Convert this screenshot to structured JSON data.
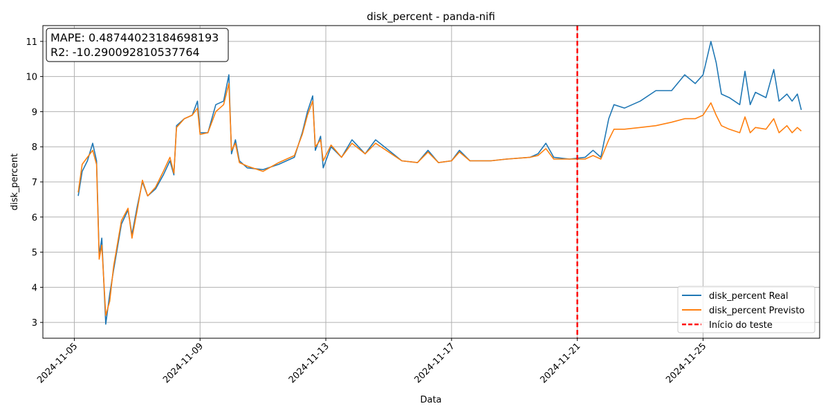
{
  "chart_data": {
    "type": "line",
    "title": "disk_percent - panda-nifi",
    "xlabel": "Data",
    "ylabel": "disk_percent",
    "xlim": [
      "2024-11-04T00:00",
      "2024-11-28T17:00"
    ],
    "ylim": [
      2.55,
      11.45
    ],
    "grid": true,
    "legend_position": "lower right",
    "x_ticks": [
      "2024-11-05",
      "2024-11-09",
      "2024-11-13",
      "2024-11-17",
      "2024-11-21",
      "2024-11-25"
    ],
    "y_ticks": [
      "3",
      "4",
      "5",
      "6",
      "7",
      "8",
      "9",
      "10",
      "11"
    ],
    "annotation": {
      "lines": [
        "MAPE: 0.48744023184698193",
        "R2: -10.290092810537764"
      ]
    },
    "vline": {
      "x": "2024-11-21",
      "label": "Início do teste",
      "color": "#ff0000",
      "style": "dashed"
    },
    "series": [
      {
        "name": "disk_percent Real",
        "color": "#1f77b4",
        "points": [
          [
            "2024-11-05T03:00",
            6.6
          ],
          [
            "2024-11-05T06:00",
            7.3
          ],
          [
            "2024-11-05T10:00",
            7.6
          ],
          [
            "2024-11-05T14:00",
            8.1
          ],
          [
            "2024-11-05T17:00",
            7.6
          ],
          [
            "2024-11-05T19:00",
            4.9
          ],
          [
            "2024-11-05T21:00",
            5.4
          ],
          [
            "2024-11-06T00:00",
            2.95
          ],
          [
            "2024-11-06T03:00",
            3.8
          ],
          [
            "2024-11-06T06:00",
            4.5
          ],
          [
            "2024-11-06T12:00",
            5.8
          ],
          [
            "2024-11-06T17:00",
            6.2
          ],
          [
            "2024-11-06T20:00",
            5.5
          ],
          [
            "2024-11-07T00:00",
            6.3
          ],
          [
            "2024-11-07T04:00",
            7.0
          ],
          [
            "2024-11-07T08:00",
            6.6
          ],
          [
            "2024-11-07T14:00",
            6.8
          ],
          [
            "2024-11-07T20:00",
            7.2
          ],
          [
            "2024-11-08T01:00",
            7.6
          ],
          [
            "2024-11-08T04:00",
            7.2
          ],
          [
            "2024-11-08T06:00",
            8.6
          ],
          [
            "2024-11-08T12:00",
            8.8
          ],
          [
            "2024-11-08T18:00",
            8.9
          ],
          [
            "2024-11-08T22:00",
            9.3
          ],
          [
            "2024-11-09T00:00",
            8.4
          ],
          [
            "2024-11-09T06:00",
            8.4
          ],
          [
            "2024-11-09T12:00",
            9.2
          ],
          [
            "2024-11-09T18:00",
            9.3
          ],
          [
            "2024-11-09T22:00",
            10.05
          ],
          [
            "2024-11-10T00:00",
            7.8
          ],
          [
            "2024-11-10T03:00",
            8.2
          ],
          [
            "2024-11-10T06:00",
            7.6
          ],
          [
            "2024-11-10T12:00",
            7.4
          ],
          [
            "2024-11-11T00:00",
            7.35
          ],
          [
            "2024-11-11T12:00",
            7.5
          ],
          [
            "2024-11-12T00:00",
            7.7
          ],
          [
            "2024-11-12T06:00",
            8.4
          ],
          [
            "2024-11-12T10:00",
            9.0
          ],
          [
            "2024-11-12T14:00",
            9.45
          ],
          [
            "2024-11-12T16:00",
            7.9
          ],
          [
            "2024-11-12T20:00",
            8.3
          ],
          [
            "2024-11-12T22:00",
            7.4
          ],
          [
            "2024-11-13T04:00",
            8.0
          ],
          [
            "2024-11-13T12:00",
            7.7
          ],
          [
            "2024-11-13T20:00",
            8.2
          ],
          [
            "2024-11-14T06:00",
            7.8
          ],
          [
            "2024-11-14T14:00",
            8.2
          ],
          [
            "2024-11-15T00:00",
            7.9
          ],
          [
            "2024-11-15T10:00",
            7.6
          ],
          [
            "2024-11-15T22:00",
            7.55
          ],
          [
            "2024-11-16T06:00",
            7.9
          ],
          [
            "2024-11-16T14:00",
            7.55
          ],
          [
            "2024-11-17T00:00",
            7.6
          ],
          [
            "2024-11-17T06:00",
            7.9
          ],
          [
            "2024-11-17T14:00",
            7.6
          ],
          [
            "2024-11-18T06:00",
            7.6
          ],
          [
            "2024-11-18T18:00",
            7.65
          ],
          [
            "2024-11-19T12:00",
            7.7
          ],
          [
            "2024-11-19T18:00",
            7.8
          ],
          [
            "2024-11-20T00:00",
            8.1
          ],
          [
            "2024-11-20T06:00",
            7.7
          ],
          [
            "2024-11-20T18:00",
            7.65
          ],
          [
            "2024-11-21T06:00",
            7.7
          ],
          [
            "2024-11-21T12:00",
            7.9
          ],
          [
            "2024-11-21T18:00",
            7.7
          ],
          [
            "2024-11-22T00:00",
            8.8
          ],
          [
            "2024-11-22T04:00",
            9.2
          ],
          [
            "2024-11-22T12:00",
            9.1
          ],
          [
            "2024-11-23T00:00",
            9.3
          ],
          [
            "2024-11-23T12:00",
            9.6
          ],
          [
            "2024-11-24T00:00",
            9.6
          ],
          [
            "2024-11-24T10:00",
            10.05
          ],
          [
            "2024-11-24T18:00",
            9.8
          ],
          [
            "2024-11-25T00:00",
            10.05
          ],
          [
            "2024-11-25T06:00",
            11.0
          ],
          [
            "2024-11-25T10:00",
            10.4
          ],
          [
            "2024-11-25T14:00",
            9.5
          ],
          [
            "2024-11-25T20:00",
            9.4
          ],
          [
            "2024-11-26T04:00",
            9.2
          ],
          [
            "2024-11-26T08:00",
            10.15
          ],
          [
            "2024-11-26T12:00",
            9.2
          ],
          [
            "2024-11-26T16:00",
            9.55
          ],
          [
            "2024-11-27T00:00",
            9.4
          ],
          [
            "2024-11-27T06:00",
            10.2
          ],
          [
            "2024-11-27T10:00",
            9.3
          ],
          [
            "2024-11-27T16:00",
            9.5
          ],
          [
            "2024-11-27T20:00",
            9.3
          ],
          [
            "2024-11-28T00:00",
            9.5
          ],
          [
            "2024-11-28T03:00",
            9.05
          ]
        ]
      },
      {
        "name": "disk_percent Previsto",
        "color": "#ff7f0e",
        "points": [
          [
            "2024-11-05T03:00",
            6.7
          ],
          [
            "2024-11-05T06:00",
            7.5
          ],
          [
            "2024-11-05T10:00",
            7.7
          ],
          [
            "2024-11-05T14:00",
            7.9
          ],
          [
            "2024-11-05T17:00",
            7.5
          ],
          [
            "2024-11-05T19:00",
            4.8
          ],
          [
            "2024-11-05T21:00",
            5.2
          ],
          [
            "2024-11-06T00:00",
            3.2
          ],
          [
            "2024-11-06T03:00",
            3.6
          ],
          [
            "2024-11-06T06:00",
            4.6
          ],
          [
            "2024-11-06T12:00",
            5.9
          ],
          [
            "2024-11-06T17:00",
            6.25
          ],
          [
            "2024-11-06T20:00",
            5.4
          ],
          [
            "2024-11-07T00:00",
            6.2
          ],
          [
            "2024-11-07T04:00",
            7.05
          ],
          [
            "2024-11-07T08:00",
            6.6
          ],
          [
            "2024-11-07T14:00",
            6.85
          ],
          [
            "2024-11-07T20:00",
            7.3
          ],
          [
            "2024-11-08T01:00",
            7.7
          ],
          [
            "2024-11-08T04:00",
            7.25
          ],
          [
            "2024-11-08T06:00",
            8.55
          ],
          [
            "2024-11-08T12:00",
            8.8
          ],
          [
            "2024-11-08T18:00",
            8.9
          ],
          [
            "2024-11-08T22:00",
            9.1
          ],
          [
            "2024-11-09T00:00",
            8.35
          ],
          [
            "2024-11-09T06:00",
            8.4
          ],
          [
            "2024-11-09T12:00",
            9.0
          ],
          [
            "2024-11-09T18:00",
            9.2
          ],
          [
            "2024-11-09T22:00",
            9.8
          ],
          [
            "2024-11-10T00:00",
            7.9
          ],
          [
            "2024-11-10T03:00",
            8.1
          ],
          [
            "2024-11-10T06:00",
            7.55
          ],
          [
            "2024-11-10T12:00",
            7.45
          ],
          [
            "2024-11-11T00:00",
            7.3
          ],
          [
            "2024-11-11T12:00",
            7.55
          ],
          [
            "2024-11-12T00:00",
            7.75
          ],
          [
            "2024-11-12T06:00",
            8.35
          ],
          [
            "2024-11-12T10:00",
            8.9
          ],
          [
            "2024-11-12T14:00",
            9.3
          ],
          [
            "2024-11-12T16:00",
            8.0
          ],
          [
            "2024-11-12T20:00",
            8.2
          ],
          [
            "2024-11-12T22:00",
            7.6
          ],
          [
            "2024-11-13T04:00",
            8.05
          ],
          [
            "2024-11-13T12:00",
            7.7
          ],
          [
            "2024-11-13T20:00",
            8.1
          ],
          [
            "2024-11-14T06:00",
            7.8
          ],
          [
            "2024-11-14T14:00",
            8.1
          ],
          [
            "2024-11-15T00:00",
            7.85
          ],
          [
            "2024-11-15T10:00",
            7.6
          ],
          [
            "2024-11-15T22:00",
            7.55
          ],
          [
            "2024-11-16T06:00",
            7.85
          ],
          [
            "2024-11-16T14:00",
            7.55
          ],
          [
            "2024-11-17T00:00",
            7.6
          ],
          [
            "2024-11-17T06:00",
            7.85
          ],
          [
            "2024-11-17T14:00",
            7.6
          ],
          [
            "2024-11-18T06:00",
            7.6
          ],
          [
            "2024-11-18T18:00",
            7.65
          ],
          [
            "2024-11-19T12:00",
            7.7
          ],
          [
            "2024-11-19T18:00",
            7.75
          ],
          [
            "2024-11-20T00:00",
            7.95
          ],
          [
            "2024-11-20T06:00",
            7.65
          ],
          [
            "2024-11-20T18:00",
            7.65
          ],
          [
            "2024-11-21T06:00",
            7.65
          ],
          [
            "2024-11-21T12:00",
            7.75
          ],
          [
            "2024-11-21T18:00",
            7.65
          ],
          [
            "2024-11-22T00:00",
            8.2
          ],
          [
            "2024-11-22T04:00",
            8.5
          ],
          [
            "2024-11-22T12:00",
            8.5
          ],
          [
            "2024-11-23T00:00",
            8.55
          ],
          [
            "2024-11-23T12:00",
            8.6
          ],
          [
            "2024-11-24T00:00",
            8.7
          ],
          [
            "2024-11-24T10:00",
            8.8
          ],
          [
            "2024-11-24T18:00",
            8.8
          ],
          [
            "2024-11-25T00:00",
            8.9
          ],
          [
            "2024-11-25T06:00",
            9.25
          ],
          [
            "2024-11-25T10:00",
            8.9
          ],
          [
            "2024-11-25T14:00",
            8.6
          ],
          [
            "2024-11-25T20:00",
            8.5
          ],
          [
            "2024-11-26T04:00",
            8.4
          ],
          [
            "2024-11-26T08:00",
            8.85
          ],
          [
            "2024-11-26T12:00",
            8.4
          ],
          [
            "2024-11-26T16:00",
            8.55
          ],
          [
            "2024-11-27T00:00",
            8.5
          ],
          [
            "2024-11-27T06:00",
            8.8
          ],
          [
            "2024-11-27T10:00",
            8.4
          ],
          [
            "2024-11-27T16:00",
            8.6
          ],
          [
            "2024-11-27T20:00",
            8.4
          ],
          [
            "2024-11-28T00:00",
            8.55
          ],
          [
            "2024-11-28T03:00",
            8.45
          ]
        ]
      }
    ]
  }
}
